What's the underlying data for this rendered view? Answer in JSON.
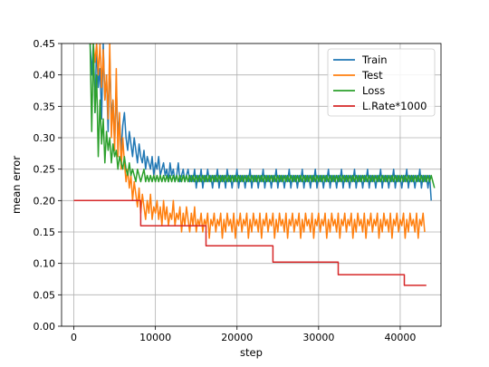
{
  "chart_data": {
    "type": "line",
    "title": "",
    "xlabel": "step",
    "ylabel": "mean error",
    "xlim": [
      -1500,
      45000
    ],
    "ylim": [
      0.0,
      0.45
    ],
    "xticks": [
      0,
      10000,
      20000,
      30000,
      40000
    ],
    "yticks": [
      0.0,
      0.05,
      0.1,
      0.15,
      0.2,
      0.25,
      0.3,
      0.35,
      0.4,
      0.45
    ],
    "xtick_labels": [
      "0",
      "10000",
      "20000",
      "30000",
      "40000"
    ],
    "ytick_labels": [
      "0.00",
      "0.05",
      "0.10",
      "0.15",
      "0.20",
      "0.25",
      "0.30",
      "0.35",
      "0.40",
      "0.45"
    ],
    "grid": true,
    "legend_position": "top-right",
    "series": [
      {
        "name": "Train",
        "color": "#1f77b4",
        "x_start": 2000,
        "x_step": 200,
        "y": [
          0.45,
          0.4,
          0.45,
          0.34,
          0.45,
          0.38,
          0.41,
          0.33,
          0.45,
          0.36,
          0.4,
          0.31,
          0.43,
          0.33,
          0.36,
          0.29,
          0.38,
          0.31,
          0.33,
          0.28,
          0.32,
          0.34,
          0.3,
          0.28,
          0.31,
          0.29,
          0.27,
          0.3,
          0.28,
          0.26,
          0.29,
          0.27,
          0.26,
          0.28,
          0.25,
          0.27,
          0.26,
          0.25,
          0.27,
          0.24,
          0.26,
          0.25,
          0.27,
          0.24,
          0.25,
          0.26,
          0.24,
          0.25,
          0.23,
          0.26,
          0.24,
          0.25,
          0.23,
          0.24,
          0.26,
          0.23,
          0.24,
          0.25,
          0.23,
          0.24,
          0.25,
          0.23,
          0.24,
          0.23,
          0.25,
          0.22,
          0.24,
          0.23,
          0.25,
          0.22,
          0.24,
          0.23,
          0.25,
          0.23,
          0.24,
          0.22,
          0.24,
          0.23,
          0.25,
          0.22,
          0.24,
          0.23,
          0.24,
          0.22,
          0.25,
          0.23,
          0.24,
          0.22,
          0.24,
          0.23,
          0.25,
          0.22,
          0.24,
          0.23,
          0.24,
          0.22,
          0.24,
          0.23,
          0.25,
          0.22,
          0.24,
          0.23,
          0.24,
          0.22,
          0.24,
          0.23,
          0.25,
          0.22,
          0.24,
          0.23,
          0.24,
          0.22,
          0.24,
          0.23,
          0.25,
          0.22,
          0.24,
          0.23,
          0.24,
          0.22,
          0.24,
          0.23,
          0.25,
          0.22,
          0.24,
          0.23,
          0.24,
          0.22,
          0.24,
          0.23,
          0.25,
          0.22,
          0.24,
          0.23,
          0.24,
          0.22,
          0.24,
          0.23,
          0.25,
          0.22,
          0.24,
          0.23,
          0.24,
          0.22,
          0.24,
          0.23,
          0.25,
          0.22,
          0.24,
          0.23,
          0.24,
          0.22,
          0.24,
          0.23,
          0.25,
          0.22,
          0.24,
          0.23,
          0.24,
          0.22,
          0.24,
          0.23,
          0.25,
          0.22,
          0.24,
          0.23,
          0.24,
          0.22,
          0.24,
          0.23,
          0.25,
          0.22,
          0.24,
          0.23,
          0.24,
          0.22,
          0.24,
          0.23,
          0.25,
          0.22,
          0.24,
          0.23,
          0.24,
          0.22,
          0.24,
          0.23,
          0.25,
          0.22,
          0.24,
          0.23,
          0.24,
          0.22,
          0.24,
          0.23,
          0.25,
          0.22,
          0.24,
          0.23,
          0.24,
          0.22,
          0.24,
          0.23,
          0.25,
          0.22,
          0.24,
          0.23,
          0.24,
          0.22,
          0.24,
          0.2
        ]
      },
      {
        "name": "Test",
        "color": "#ff7f0e",
        "x_start": 2000,
        "x_step": 200,
        "y": [
          0.45,
          0.45,
          0.45,
          0.42,
          0.45,
          0.4,
          0.45,
          0.38,
          0.44,
          0.36,
          0.4,
          0.33,
          0.45,
          0.3,
          0.36,
          0.28,
          0.41,
          0.27,
          0.34,
          0.25,
          0.3,
          0.26,
          0.23,
          0.25,
          0.22,
          0.24,
          0.2,
          0.23,
          0.21,
          0.19,
          0.22,
          0.18,
          0.21,
          0.19,
          0.17,
          0.2,
          0.18,
          0.21,
          0.17,
          0.19,
          0.18,
          0.2,
          0.17,
          0.19,
          0.16,
          0.2,
          0.17,
          0.19,
          0.16,
          0.18,
          0.17,
          0.2,
          0.16,
          0.18,
          0.17,
          0.19,
          0.15,
          0.18,
          0.16,
          0.19,
          0.17,
          0.15,
          0.18,
          0.16,
          0.19,
          0.15,
          0.17,
          0.16,
          0.18,
          0.15,
          0.17,
          0.16,
          0.18,
          0.14,
          0.17,
          0.16,
          0.18,
          0.15,
          0.17,
          0.16,
          0.18,
          0.14,
          0.17,
          0.15,
          0.18,
          0.16,
          0.17,
          0.15,
          0.18,
          0.14,
          0.17,
          0.16,
          0.18,
          0.15,
          0.17,
          0.16,
          0.18,
          0.14,
          0.17,
          0.15,
          0.18,
          0.16,
          0.17,
          0.15,
          0.18,
          0.14,
          0.17,
          0.16,
          0.18,
          0.15,
          0.17,
          0.16,
          0.18,
          0.14,
          0.17,
          0.15,
          0.18,
          0.16,
          0.17,
          0.15,
          0.18,
          0.14,
          0.17,
          0.16,
          0.18,
          0.15,
          0.17,
          0.16,
          0.18,
          0.14,
          0.17,
          0.15,
          0.18,
          0.16,
          0.17,
          0.15,
          0.18,
          0.14,
          0.17,
          0.16,
          0.18,
          0.15,
          0.17,
          0.16,
          0.18,
          0.14,
          0.17,
          0.15,
          0.18,
          0.16,
          0.17,
          0.15,
          0.18,
          0.14,
          0.17,
          0.16,
          0.18,
          0.15,
          0.17,
          0.16,
          0.18,
          0.14,
          0.17,
          0.15,
          0.18,
          0.16,
          0.17,
          0.15,
          0.18,
          0.14,
          0.17,
          0.16,
          0.18,
          0.15,
          0.17,
          0.16,
          0.18,
          0.14,
          0.17,
          0.15,
          0.18,
          0.16,
          0.17,
          0.15,
          0.18,
          0.14,
          0.17,
          0.16,
          0.18,
          0.15,
          0.17,
          0.16,
          0.18,
          0.14,
          0.17,
          0.15,
          0.18,
          0.16,
          0.17,
          0.15,
          0.18,
          0.14,
          0.17,
          0.16,
          0.18,
          0.15
        ]
      },
      {
        "name": "Loss",
        "color": "#2ca02c",
        "x_start": 2000,
        "x_step": 200,
        "y": [
          0.45,
          0.31,
          0.45,
          0.34,
          0.4,
          0.27,
          0.36,
          0.29,
          0.33,
          0.26,
          0.31,
          0.28,
          0.3,
          0.26,
          0.29,
          0.27,
          0.28,
          0.25,
          0.27,
          0.26,
          0.25,
          0.27,
          0.25,
          0.24,
          0.26,
          0.24,
          0.25,
          0.24,
          0.23,
          0.25,
          0.24,
          0.23,
          0.24,
          0.25,
          0.23,
          0.24,
          0.23,
          0.24,
          0.23,
          0.24,
          0.23,
          0.24,
          0.23,
          0.24,
          0.23,
          0.24,
          0.23,
          0.24,
          0.23,
          0.24,
          0.23,
          0.24,
          0.23,
          0.24,
          0.23,
          0.24,
          0.23,
          0.24,
          0.23,
          0.24,
          0.23,
          0.24,
          0.23,
          0.24,
          0.23,
          0.24,
          0.23,
          0.24,
          0.23,
          0.24,
          0.23,
          0.24,
          0.23,
          0.24,
          0.23,
          0.24,
          0.23,
          0.24,
          0.23,
          0.24,
          0.23,
          0.24,
          0.23,
          0.24,
          0.23,
          0.24,
          0.23,
          0.24,
          0.23,
          0.24,
          0.23,
          0.24,
          0.23,
          0.24,
          0.23,
          0.24,
          0.23,
          0.24,
          0.23,
          0.24,
          0.23,
          0.24,
          0.23,
          0.24,
          0.23,
          0.24,
          0.23,
          0.24,
          0.23,
          0.24,
          0.23,
          0.24,
          0.23,
          0.24,
          0.23,
          0.24,
          0.23,
          0.24,
          0.23,
          0.24,
          0.23,
          0.24,
          0.23,
          0.24,
          0.23,
          0.24,
          0.23,
          0.24,
          0.23,
          0.24,
          0.23,
          0.24,
          0.23,
          0.24,
          0.23,
          0.24,
          0.23,
          0.24,
          0.23,
          0.24,
          0.23,
          0.24,
          0.23,
          0.24,
          0.23,
          0.24,
          0.23,
          0.24,
          0.23,
          0.24,
          0.23,
          0.24,
          0.23,
          0.24,
          0.23,
          0.24,
          0.23,
          0.24,
          0.23,
          0.24,
          0.23,
          0.24,
          0.23,
          0.24,
          0.23,
          0.24,
          0.23,
          0.24,
          0.23,
          0.24,
          0.23,
          0.24,
          0.23,
          0.24,
          0.23,
          0.24,
          0.23,
          0.24,
          0.23,
          0.24,
          0.23,
          0.24,
          0.23,
          0.24,
          0.23,
          0.24,
          0.23,
          0.24,
          0.23,
          0.24,
          0.23,
          0.24,
          0.23,
          0.24,
          0.23,
          0.24,
          0.23,
          0.24,
          0.23,
          0.24,
          0.23,
          0.24,
          0.23,
          0.24,
          0.23,
          0.24,
          0.23,
          0.24,
          0.23,
          0.24,
          0.23,
          0.22
        ]
      },
      {
        "name": "L.Rate*1000",
        "color": "#d62728",
        "step": true,
        "points": [
          [
            0,
            0.2
          ],
          [
            8200,
            0.2
          ],
          [
            8200,
            0.16
          ],
          [
            16200,
            0.16
          ],
          [
            16200,
            0.128
          ],
          [
            24400,
            0.128
          ],
          [
            24400,
            0.102
          ],
          [
            32400,
            0.102
          ],
          [
            32400,
            0.082
          ],
          [
            40500,
            0.082
          ],
          [
            40500,
            0.065
          ],
          [
            43200,
            0.065
          ]
        ]
      }
    ]
  }
}
